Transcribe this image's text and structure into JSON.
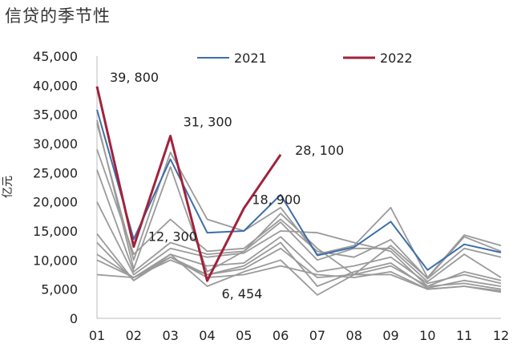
{
  "chart_data": {
    "type": "line",
    "title": "信贷的季节性",
    "ylabel": "亿元",
    "xlabel": "",
    "ylim": [
      0,
      45000
    ],
    "y_ticks": [
      "0",
      "5,000",
      "10,000",
      "15,000",
      "20,000",
      "25,000",
      "30,000",
      "35,000",
      "40,000",
      "45,000"
    ],
    "categories": [
      "01",
      "02",
      "03",
      "04",
      "05",
      "06",
      "07",
      "08",
      "09",
      "10",
      "11",
      "12"
    ],
    "grid": false,
    "legend": "top",
    "highlight_series": [
      {
        "name": "2021",
        "color": "#3d6fa8",
        "values": [
          35800,
          13600,
          27300,
          14700,
          15000,
          21200,
          10800,
          12200,
          16600,
          8300,
          12700,
          11300
        ]
      },
      {
        "name": "2022",
        "color": "#a0233d",
        "values": [
          39800,
          12300,
          31300,
          6454,
          18900,
          28100
        ]
      }
    ],
    "background_series": {
      "color": "#9a9a9a",
      "series": [
        {
          "values": [
            33500,
            10000,
            28500,
            17000,
            15000,
            19000,
            11000,
            12500,
            19000,
            7000,
            14300,
            12500
          ]
        },
        {
          "values": [
            34000,
            8500,
            26000,
            8000,
            11500,
            18000,
            12000,
            7500,
            12500,
            6900,
            14000,
            11500
          ]
        },
        {
          "values": [
            29000,
            11000,
            17000,
            11500,
            12000,
            17000,
            11500,
            10500,
            13500,
            6800,
            12000,
            10500
          ]
        },
        {
          "values": [
            25500,
            8000,
            13000,
            11000,
            11500,
            16500,
            10000,
            12000,
            12000,
            6300,
            11000,
            7000
          ]
        },
        {
          "values": [
            20000,
            7500,
            12000,
            10500,
            11200,
            15000,
            14700,
            13000,
            11500,
            5500,
            8000,
            6500
          ]
        },
        {
          "values": [
            14500,
            6500,
            11000,
            9000,
            9500,
            14000,
            8000,
            9000,
            10500,
            6000,
            7500,
            6000
          ]
        },
        {
          "values": [
            13000,
            6500,
            10500,
            7500,
            9000,
            13000,
            5500,
            8000,
            9500,
            5200,
            6500,
            5500
          ]
        },
        {
          "values": [
            11000,
            7000,
            10000,
            7500,
            8500,
            12000,
            7000,
            7500,
            9000,
            5500,
            6000,
            5000
          ]
        },
        {
          "values": [
            10000,
            7000,
            11000,
            5500,
            8000,
            10000,
            4000,
            7500,
            7500,
            5000,
            5500,
            4700
          ]
        },
        {
          "values": [
            7500,
            7000,
            10500,
            7000,
            7500,
            9000,
            7500,
            7000,
            8000,
            5000,
            5500,
            4500
          ]
        }
      ]
    },
    "annotations": [
      {
        "series": "2022",
        "index": 0,
        "text": "39, 800"
      },
      {
        "series": "2022",
        "index": 2,
        "text": "31, 300"
      },
      {
        "series": "2022",
        "index": 5,
        "text": "28, 100"
      },
      {
        "series": "2022",
        "index": 4,
        "text": "18, 900"
      },
      {
        "series": "2022",
        "index": 1,
        "text": "12, 300"
      },
      {
        "series": "2022",
        "index": 3,
        "text": "6, 454"
      }
    ]
  }
}
